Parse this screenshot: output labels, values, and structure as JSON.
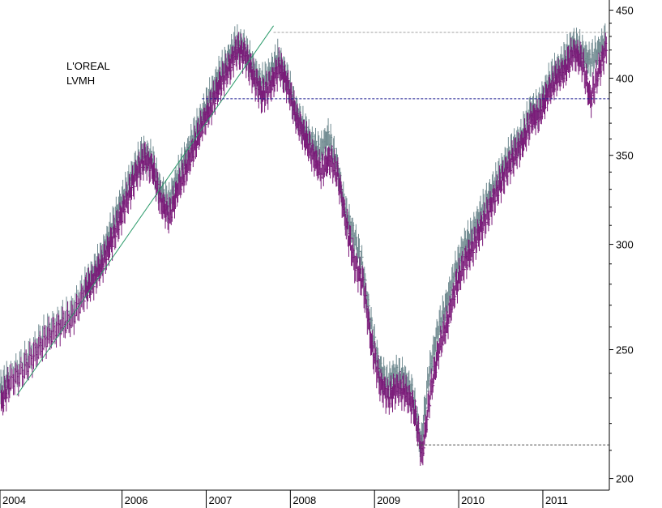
{
  "chart_data": {
    "type": "line",
    "style": "ohlc-bars",
    "title": "",
    "xlabel": "",
    "ylabel": "",
    "y_scale": "log",
    "ylim": [
      196,
      458
    ],
    "y_ticks": [
      200,
      250,
      300,
      350,
      400,
      450
    ],
    "x_ticks": [
      {
        "label": "2004",
        "x": 2004.0
      },
      {
        "label": "2006",
        "x": 2005.45
      },
      {
        "label": "2007",
        "x": 2006.45
      },
      {
        "label": "2008",
        "x": 2007.45
      },
      {
        "label": "2009",
        "x": 2008.45
      },
      {
        "label": "2010",
        "x": 2009.45
      },
      {
        "label": "2011",
        "x": 2010.45
      }
    ],
    "xlim": [
      2004.0,
      2011.24
    ],
    "legend": {
      "position": "top-left",
      "entries": [
        "L'OREAL",
        "LVMH"
      ]
    },
    "colors": {
      "loreal": "#708a90",
      "lvmh": "#7a1878",
      "trend": "#2a9a6a",
      "support": "#1a1a90",
      "guide": "#a0a0a0"
    },
    "series": [
      {
        "name": "L'OREAL",
        "x": [
          2004.0,
          2004.1,
          2004.25,
          2004.4,
          2004.55,
          2004.7,
          2004.85,
          2005.0,
          2005.1,
          2005.2,
          2005.3,
          2005.4,
          2005.5,
          2005.6,
          2005.7,
          2005.8,
          2005.9,
          2006.0,
          2006.1,
          2006.2,
          2006.3,
          2006.4,
          2006.5,
          2006.6,
          2006.7,
          2006.8,
          2006.9,
          2007.0,
          2007.1,
          2007.2,
          2007.3,
          2007.4,
          2007.5,
          2007.6,
          2007.7,
          2007.8,
          2007.9,
          2008.0,
          2008.1,
          2008.2,
          2008.3,
          2008.4,
          2008.5,
          2008.6,
          2008.7,
          2008.8,
          2008.9,
          2009.0,
          2009.1,
          2009.2,
          2009.3,
          2009.4,
          2009.5,
          2009.6,
          2009.7,
          2009.8,
          2009.9,
          2010.0,
          2010.1,
          2010.2,
          2010.3,
          2010.4,
          2010.5,
          2010.6,
          2010.7,
          2010.8,
          2010.9,
          2011.0,
          2011.1,
          2011.2
        ],
        "values": [
          233,
          238,
          243,
          250,
          258,
          262,
          267,
          278,
          285,
          293,
          305,
          318,
          330,
          342,
          352,
          348,
          330,
          322,
          336,
          348,
          362,
          375,
          388,
          402,
          412,
          425,
          422,
          408,
          396,
          402,
          414,
          402,
          380,
          368,
          358,
          352,
          362,
          345,
          318,
          305,
          290,
          262,
          243,
          236,
          240,
          238,
          232,
          212,
          240,
          258,
          270,
          285,
          298,
          305,
          315,
          325,
          335,
          345,
          355,
          362,
          378,
          380,
          395,
          405,
          412,
          425,
          420,
          412,
          418,
          428
        ]
      },
      {
        "name": "LVMH",
        "x": [
          2004.0,
          2004.1,
          2004.25,
          2004.4,
          2004.55,
          2004.7,
          2004.85,
          2005.0,
          2005.1,
          2005.2,
          2005.3,
          2005.4,
          2005.5,
          2005.6,
          2005.7,
          2005.8,
          2005.9,
          2006.0,
          2006.1,
          2006.2,
          2006.3,
          2006.4,
          2006.5,
          2006.6,
          2006.7,
          2006.8,
          2006.9,
          2007.0,
          2007.1,
          2007.2,
          2007.3,
          2007.4,
          2007.5,
          2007.6,
          2007.7,
          2007.8,
          2007.9,
          2008.0,
          2008.1,
          2008.2,
          2008.3,
          2008.4,
          2008.5,
          2008.6,
          2008.7,
          2008.8,
          2008.9,
          2009.0,
          2009.1,
          2009.2,
          2009.3,
          2009.4,
          2009.5,
          2009.6,
          2009.7,
          2009.8,
          2009.9,
          2010.0,
          2010.1,
          2010.2,
          2010.3,
          2010.4,
          2010.5,
          2010.6,
          2010.7,
          2010.8,
          2010.9,
          2011.0,
          2011.1,
          2011.2
        ],
        "values": [
          228,
          236,
          240,
          248,
          255,
          260,
          264,
          276,
          282,
          290,
          300,
          312,
          325,
          338,
          348,
          342,
          322,
          315,
          330,
          342,
          356,
          370,
          382,
          396,
          406,
          420,
          416,
          400,
          388,
          394,
          408,
          396,
          374,
          362,
          350,
          340,
          348,
          338,
          310,
          290,
          280,
          252,
          236,
          230,
          234,
          232,
          226,
          208,
          232,
          250,
          262,
          278,
          290,
          298,
          308,
          318,
          330,
          340,
          350,
          358,
          372,
          376,
          390,
          400,
          406,
          418,
          412,
          385,
          405,
          424
        ]
      }
    ],
    "annotations": {
      "trendline": {
        "from": [
          2004.2,
          231
        ],
        "to": [
          2007.25,
          438
        ]
      },
      "support_line": {
        "y": 386,
        "from_x": 2006.4,
        "to_x": 2011.24
      },
      "resistance_line": {
        "y": 433,
        "from_x": 2007.25,
        "to_x": 2011.24
      },
      "low_line": {
        "y": 212,
        "from_x": 2008.95,
        "to_x": 2011.24
      }
    }
  }
}
